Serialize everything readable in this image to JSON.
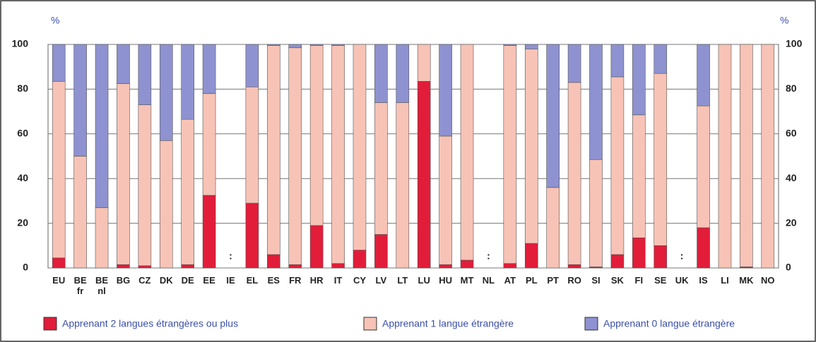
{
  "chart_data": {
    "type": "stacked_bar",
    "y_unit_left": "%",
    "y_unit_right": "%",
    "no_data_label": ":",
    "categories": [
      "EU",
      "BE fr",
      "BE nl",
      "BG",
      "CZ",
      "DK",
      "DE",
      "EE",
      "IE",
      "EL",
      "ES",
      "FR",
      "HR",
      "IT",
      "CY",
      "LV",
      "LT",
      "LU",
      "HU",
      "MT",
      "NL",
      "AT",
      "PL",
      "PT",
      "RO",
      "SI",
      "SK",
      "FI",
      "SE",
      "UK",
      "IS",
      "LI",
      "MK",
      "NO"
    ],
    "series": [
      {
        "name": "Apprenant 2 langues étrangères ou plus",
        "color": "#e11d3a",
        "values": [
          4.5,
          0,
          0,
          1.5,
          1,
          0,
          1.5,
          32.5,
          null,
          29,
          6,
          1.5,
          19,
          2,
          8,
          15,
          0,
          83.5,
          1.5,
          3.5,
          null,
          2,
          11,
          0,
          1.5,
          0.5,
          6,
          13.5,
          10,
          null,
          18,
          0,
          0.5,
          0
        ]
      },
      {
        "name": "Apprenant 1 langue étrangère",
        "color": "#f7c3b6",
        "values": [
          79,
          50,
          27,
          81,
          72,
          57,
          65,
          45.5,
          null,
          52,
          93.5,
          97,
          80.5,
          97.5,
          92,
          59,
          74,
          16.5,
          57.5,
          96.5,
          null,
          97.5,
          87,
          36,
          81.5,
          48,
          79.5,
          55,
          77,
          null,
          54.5,
          100,
          99.5,
          100
        ]
      },
      {
        "name": "Apprenant 0 langue étrangère",
        "color": "#8e92d0",
        "values": [
          16.5,
          50,
          73,
          17.5,
          27,
          43,
          33.5,
          22,
          null,
          19,
          0.5,
          1.5,
          0.5,
          0.5,
          0,
          26,
          26,
          0,
          41,
          0,
          null,
          0.5,
          2,
          64,
          17,
          51.5,
          14.5,
          31.5,
          13,
          null,
          27.5,
          0,
          0,
          0
        ]
      }
    ],
    "ylim": [
      0,
      100
    ],
    "yticks": [
      0,
      20,
      40,
      60,
      80,
      100
    ],
    "grid": true
  }
}
